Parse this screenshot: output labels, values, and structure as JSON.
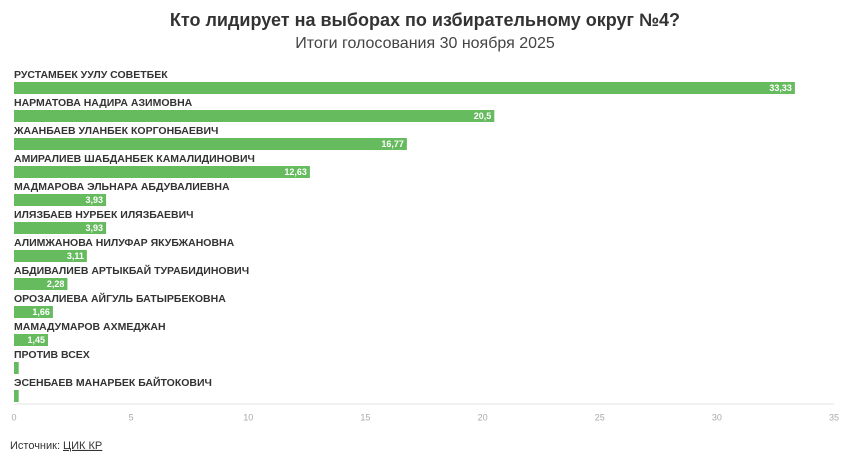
{
  "chart_data": {
    "type": "bar",
    "orientation": "horizontal",
    "title": "Кто лидирует на выборах по избирательному округ №4?",
    "subtitle": "Итоги голосования 30 ноября 2025",
    "categories": [
      "РУСТАМБЕК УУЛУ СОВЕТБЕК",
      "НАРМАТОВА НАДИРА АЗИМОВНА",
      "ЖААНБАЕВ УЛАНБЕК КОРГОНБАЕВИЧ",
      "АМИРАЛИЕВ ШАБДАНБЕК КАМАЛИДИНОВИЧ",
      "МАДМАРОВА ЭЛЬНАРА АБДУВАЛИЕВНА",
      "ИЛЯЗБАЕВ НУРБЕК ИЛЯЗБАЕВИЧ",
      "АЛИМЖАНОВА НИЛУФАР ЯКУБЖАНОВНА",
      "АБДИВАЛИЕВ АРТЫКБАЙ ТУРАБИДИНОВИЧ",
      "ОРОЗАЛИЕВА АЙГУЛЬ БАТЫРБЕКОВНА",
      "МАМАДУМАРОВ АХМЕДЖАН",
      "ПРОТИВ ВСЕХ",
      "ЭСЕНБАЕВ МАНАРБЕК БАЙТОКОВИЧ"
    ],
    "values": [
      33.33,
      20.5,
      16.77,
      12.63,
      3.93,
      3.93,
      3.11,
      2.28,
      1.66,
      1.45,
      0.2,
      0.2
    ],
    "value_labels": [
      "33,33",
      "20,5",
      "16,77",
      "12,63",
      "3,93",
      "3,93",
      "3,11",
      "2,28",
      "1,66",
      "1,45",
      null,
      null
    ],
    "color": "#66bb5f",
    "xlim": [
      0,
      35
    ],
    "xticks": [
      0,
      5,
      10,
      15,
      20,
      25,
      30,
      35
    ]
  },
  "source": {
    "label": "Источник:",
    "link": "ЦИК КР"
  }
}
